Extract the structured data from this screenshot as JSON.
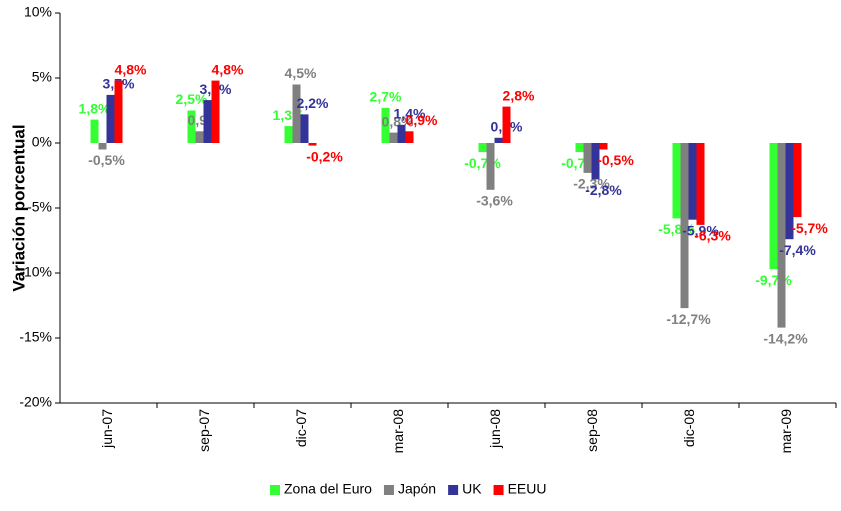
{
  "chart_data": {
    "type": "bar",
    "y_label": "Variación porcentual",
    "categories": [
      "jun-07",
      "sep-07",
      "dic-07",
      "mar-08",
      "jun-08",
      "sep-08",
      "dic-08",
      "mar-09"
    ],
    "series": [
      {
        "name": "Zona del Euro",
        "color": "#33ff33",
        "values": [
          1.8,
          2.5,
          1.3,
          2.7,
          -0.7,
          -0.7,
          -5.8,
          -9.7
        ],
        "value_labels": [
          "1,8%",
          "2,5%",
          "1,3%",
          "2,7%",
          "-0,7%",
          "-0,7%",
          "-5,8%",
          "-9,7%"
        ]
      },
      {
        "name": "Japón",
        "color": "#808080",
        "values": [
          -0.5,
          0.9,
          4.5,
          0.8,
          -3.6,
          -2.3,
          -12.7,
          -14.2
        ],
        "value_labels": [
          "-0,5%",
          "0,9%",
          "4,5%",
          "0,8%",
          "-3,6%",
          "-2,3%",
          "-12,7%",
          "-14,2%"
        ]
      },
      {
        "name": "UK",
        "color": "#333399",
        "values": [
          3.7,
          3.3,
          2.2,
          1.4,
          0.4,
          -2.8,
          -5.9,
          -7.4
        ],
        "value_labels": [
          "3,7%",
          "3,3%",
          "2,2%",
          "1,4%",
          "0,4%",
          "-2,8%",
          "-5,9%",
          "-7,4%"
        ]
      },
      {
        "name": "EEUU",
        "color": "#ff0000",
        "values": [
          4.8,
          4.8,
          -0.2,
          0.9,
          2.8,
          -0.5,
          -6.3,
          -5.7
        ],
        "value_labels": [
          "4,8%",
          "4,8%",
          "-0,2%",
          "0,9%",
          "2,8%",
          "-0,5%",
          "-6,3%",
          "-5,7%"
        ]
      }
    ],
    "ylim": [
      -20,
      10
    ],
    "yticks": [
      {
        "value": -20,
        "label": "-20%"
      },
      {
        "value": -15,
        "label": "-15%"
      },
      {
        "value": -10,
        "label": "-10%"
      },
      {
        "value": -5,
        "label": "-5%"
      },
      {
        "value": 0,
        "label": "0%"
      },
      {
        "value": 5,
        "label": "5%"
      },
      {
        "value": 10,
        "label": "10%"
      }
    ],
    "legend": "bottom"
  }
}
